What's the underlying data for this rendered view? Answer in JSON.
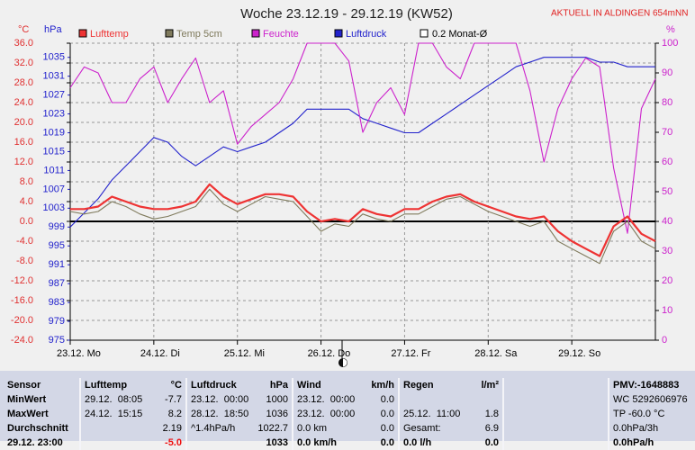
{
  "chart_data": {
    "type": "line",
    "title": "Woche 23.12.19 - 29.12.19 (KW52)",
    "header_note": "AKTUELL IN ALDINGEN 654mNN",
    "ylabel": "°C",
    "y3label": "hPa",
    "y2label": "%",
    "x": [
      0,
      4,
      8,
      12,
      16,
      20,
      24,
      28,
      32,
      36,
      40,
      44,
      48,
      52,
      56,
      60,
      64,
      68,
      72,
      76,
      80,
      84,
      88,
      92,
      96,
      100,
      104,
      108,
      112,
      116,
      120,
      124,
      128,
      132,
      136,
      140,
      144,
      148,
      152,
      156,
      160,
      164,
      168
    ],
    "xlim": [
      0,
      168
    ],
    "xticks": [
      {
        "value": 0,
        "label": "23.12. Mo"
      },
      {
        "value": 24,
        "label": "24.12. Di"
      },
      {
        "value": 48,
        "label": "25.12. Mi"
      },
      {
        "value": 72,
        "label": "26.12. Do"
      },
      {
        "value": 96,
        "label": "27.12. Fr"
      },
      {
        "value": 120,
        "label": "28.12. Sa"
      },
      {
        "value": 144,
        "label": "29.12. So"
      }
    ],
    "ylim": [
      -24,
      36
    ],
    "yticks": [
      {
        "value": -24,
        "label": "-24.0"
      },
      {
        "value": -20,
        "label": "-20.0"
      },
      {
        "value": -16,
        "label": "-16.0"
      },
      {
        "value": -12,
        "label": "-12.0"
      },
      {
        "value": -8,
        "label": "-8.0"
      },
      {
        "value": -4,
        "label": "-4.0"
      },
      {
        "value": 0,
        "label": "0.0"
      },
      {
        "value": 4,
        "label": "4.0"
      },
      {
        "value": 8,
        "label": "8.0"
      },
      {
        "value": 12,
        "label": "12.0"
      },
      {
        "value": 16,
        "label": "16.0"
      },
      {
        "value": 20,
        "label": "20.0"
      },
      {
        "value": 24,
        "label": "24.0"
      },
      {
        "value": 28,
        "label": "28.0"
      },
      {
        "value": 32,
        "label": "32.0"
      },
      {
        "value": 36,
        "label": "36.0"
      }
    ],
    "y2lim": [
      0,
      100
    ],
    "y2ticks": [
      0,
      10,
      20,
      30,
      40,
      50,
      60,
      70,
      80,
      90,
      100
    ],
    "y3lim": [
      975,
      1038
    ],
    "y3ticks": [
      975,
      979,
      983,
      987,
      991,
      995,
      999,
      1003,
      1007,
      1011,
      1015,
      1019,
      1023,
      1027,
      1031,
      1035
    ],
    "grid": true,
    "series": [
      {
        "name": "Lufttemp",
        "color": "#ee3333",
        "axis": "y",
        "values": [
          2.5,
          2.5,
          3,
          5,
          4,
          3,
          2.5,
          2.5,
          3,
          4,
          7.5,
          5,
          3.5,
          4.5,
          5.5,
          5.5,
          5,
          2,
          0,
          0.5,
          0,
          2.5,
          1.5,
          1,
          2.5,
          2.5,
          4,
          5,
          5.5,
          4,
          3,
          2,
          1,
          0.5,
          1,
          -2,
          -4,
          -5.5,
          -7,
          -1,
          1,
          -2.5,
          -4
        ]
      },
      {
        "name": "Temp 5cm",
        "color": "#7f7a5c",
        "axis": "y",
        "values": [
          2,
          1.5,
          2,
          4,
          3,
          1.5,
          0.5,
          1,
          2,
          3,
          6.5,
          3.5,
          2,
          3.5,
          5,
          4.5,
          4,
          1,
          -2,
          -0.5,
          -1,
          1.5,
          0.5,
          0,
          1.5,
          1.5,
          3,
          4.5,
          5,
          3.5,
          2,
          1,
          0,
          -1,
          0,
          -4,
          -5.5,
          -7,
          -8.5,
          -2,
          0,
          -4,
          -5.5
        ]
      },
      {
        "name": "Feuchte",
        "color": "#cc22cc",
        "axis": "y2",
        "values": [
          85,
          92,
          90,
          80,
          80,
          88,
          92,
          80,
          88,
          95,
          80,
          84,
          66,
          72,
          76,
          80,
          88,
          100,
          100,
          100,
          94,
          70,
          80,
          85,
          76,
          100,
          100,
          92,
          88,
          100,
          100,
          100,
          100,
          84,
          60,
          78,
          88,
          95,
          92,
          58,
          36,
          78,
          88
        ]
      },
      {
        "name": "Luftdruck",
        "color": "#2222cc",
        "axis": "y3",
        "values": [
          999,
          1002,
          1005,
          1009,
          1012,
          1015,
          1018,
          1017,
          1014,
          1012,
          1014,
          1016,
          1015,
          1016,
          1017,
          1019,
          1021,
          1024,
          1024,
          1024,
          1024,
          1022,
          1021,
          1020,
          1019,
          1019,
          1021,
          1023,
          1025,
          1027,
          1029,
          1031,
          1033,
          1034,
          1035,
          1035,
          1035,
          1035,
          1034,
          1034,
          1033,
          1033,
          1033
        ]
      }
    ],
    "extra_legend": {
      "name": "0.2 Monat-Ø",
      "color": "#ffffff"
    }
  },
  "table": {
    "rows": [
      [
        "Sensor",
        [
          "Lufttemp",
          "°C"
        ],
        [
          "Luftdruck",
          "hPa"
        ],
        [
          "Wind",
          "km/h"
        ],
        [
          "Regen",
          "l/m²"
        ],
        "PMV:-1648883"
      ],
      [
        "MinWert",
        [
          "29.12.  08:05",
          "-7.7"
        ],
        [
          "23.12.  00:00",
          "1000"
        ],
        [
          "23.12.  00:00",
          "0.0"
        ],
        null,
        "WC 5292606976"
      ],
      [
        "MaxWert",
        [
          "24.12.  15:15",
          "8.2"
        ],
        [
          "28.12.  18:50",
          "1036"
        ],
        [
          "23.12.  00:00",
          "0.0"
        ],
        [
          "25.12.  11:00",
          "1.8"
        ],
        "TP -60.0 °C"
      ],
      [
        "Durchschnitt",
        [
          null,
          "2.19"
        ],
        [
          "^1.4hPa/h",
          "1022.7"
        ],
        [
          "0.0 km",
          "0.0"
        ],
        [
          "Gesamt:",
          "6.9"
        ],
        "0.0hPa/3h"
      ],
      [
        "29.12. 23:00",
        [
          null,
          "-5.0"
        ],
        [
          null,
          "1033"
        ],
        [
          "0.0 km/h",
          "0.0"
        ],
        [
          "0.0 l/h",
          "0.0"
        ],
        "0.0hPa/h"
      ]
    ]
  }
}
